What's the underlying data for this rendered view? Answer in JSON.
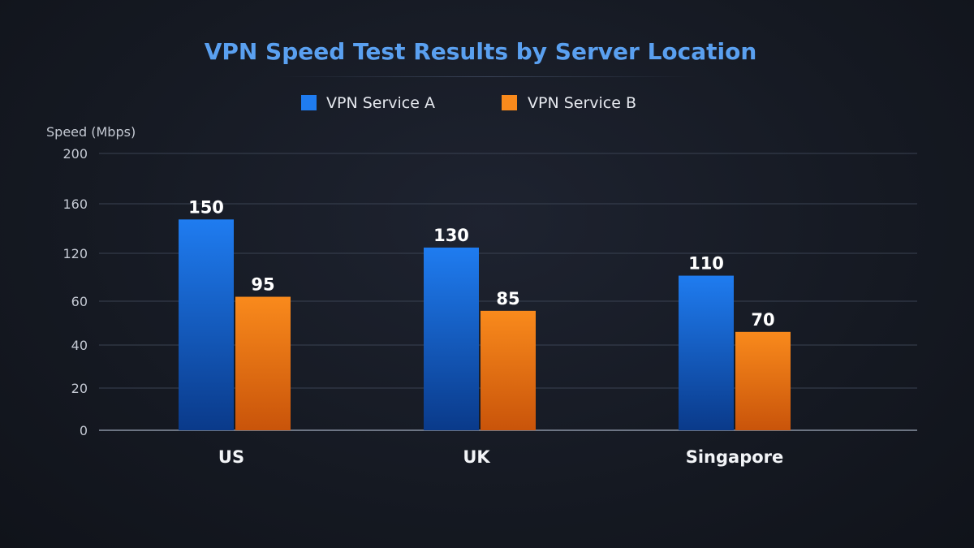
{
  "chart_data": {
    "type": "bar",
    "title": "VPN Speed Test Results by Server Location",
    "ylabel": "Speed (Mbps)",
    "xlabel": "",
    "y_ticks": [
      "0",
      "20",
      "40",
      "60",
      "120",
      "160",
      "200"
    ],
    "categories": [
      "US",
      "UK",
      "Singapore"
    ],
    "series": [
      {
        "name": "VPN Service A",
        "values": [
          150,
          130,
          110
        ],
        "color": "#1f7cf0",
        "color_dark": "#0a3a8a"
      },
      {
        "name": "VPN Service B",
        "values": [
          95,
          85,
          70
        ],
        "color": "#f98a1c",
        "color_dark": "#c9540a"
      }
    ],
    "grid": true,
    "legend_position": "top-center",
    "title_color": "#5aa0f0"
  }
}
